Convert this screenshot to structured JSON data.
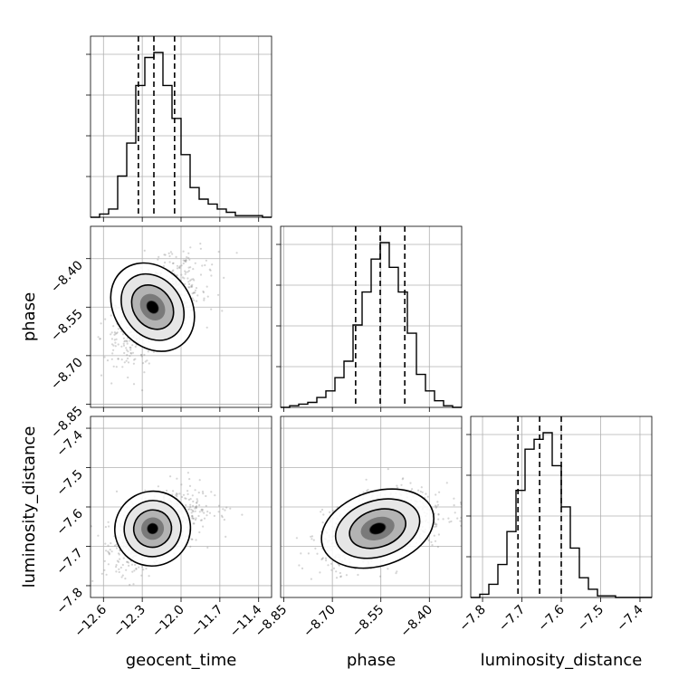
{
  "chart_data": {
    "type": "corner",
    "parameters": [
      {
        "name": "geocent_time",
        "xticks": [
          "−12.6",
          "−12.3",
          "−12.0",
          "−11.7",
          "−11.4"
        ],
        "xtick_values": [
          -12.6,
          -12.3,
          -12.0,
          -11.7,
          -11.4
        ],
        "range": [
          -12.7,
          -11.3
        ],
        "quantiles": [
          -12.33,
          -12.21,
          -12.05
        ],
        "hist": {
          "edges_start": -12.7,
          "bin_width": 0.07,
          "counts": [
            0,
            2,
            5,
            25,
            45,
            80,
            97,
            100,
            80,
            60,
            38,
            18,
            11,
            8,
            5,
            3,
            1,
            1,
            1,
            0
          ]
        }
      },
      {
        "name": "phase",
        "xticks": [
          "−8.85",
          "−8.70",
          "−8.55",
          "−8.40"
        ],
        "xtick_values": [
          -8.85,
          -8.7,
          -8.55,
          -8.4
        ],
        "yticks": [
          "−8.85",
          "−8.70",
          "−8.55",
          "−8.40"
        ],
        "ytick_values": [
          -8.85,
          -8.7,
          -8.55,
          -8.4
        ],
        "range": [
          -8.86,
          -8.3
        ],
        "quantiles": [
          -8.628,
          -8.552,
          -8.476
        ],
        "hist": {
          "edges_start": -8.86,
          "bin_width": 0.028,
          "counts": [
            0,
            1,
            2,
            3,
            6,
            10,
            18,
            28,
            50,
            70,
            90,
            100,
            85,
            70,
            45,
            20,
            10,
            4,
            1,
            0
          ]
        }
      },
      {
        "name": "luminosity_distance",
        "xticks": [
          "−7.8",
          "−7.7",
          "−7.6",
          "−7.5",
          "−7.4"
        ],
        "xtick_values": [
          -7.8,
          -7.7,
          -7.6,
          -7.5,
          -7.4
        ],
        "yticks": [
          "−7.8",
          "−7.7",
          "−7.6",
          "−7.5",
          "−7.4"
        ],
        "ytick_values": [
          -7.8,
          -7.7,
          -7.6,
          -7.5,
          -7.4
        ],
        "range": [
          -7.83,
          -7.37
        ],
        "quantiles": [
          -7.71,
          -7.655,
          -7.6
        ],
        "hist": {
          "edges_start": -7.83,
          "bin_width": 0.023,
          "counts": [
            0,
            2,
            8,
            20,
            40,
            65,
            90,
            96,
            100,
            80,
            55,
            30,
            12,
            5,
            1,
            1,
            0,
            0,
            0,
            0
          ]
        }
      }
    ],
    "panels_2d": [
      {
        "x": "geocent_time",
        "y": "phase",
        "center": [
          -12.22,
          -8.55
        ],
        "spread": [
          0.14,
          0.07
        ],
        "rho": 0.55
      },
      {
        "x": "geocent_time",
        "y": "luminosity_distance",
        "center": [
          -12.22,
          -7.655
        ],
        "spread": [
          0.14,
          0.045
        ],
        "rho": 0.5
      },
      {
        "x": "phase",
        "y": "luminosity_distance",
        "center": [
          -8.56,
          -7.655
        ],
        "spread": [
          0.085,
          0.045
        ],
        "rho": 0.45
      }
    ],
    "grid": true,
    "colors": {
      "line": "#000000",
      "grid": "#b0b0b0",
      "scatter": "#888888",
      "fill_levels": [
        "#ffffff",
        "#e6e6e6",
        "#b3b3b3",
        "#7a7a7a",
        "#3a3a3a",
        "#000000"
      ]
    }
  }
}
